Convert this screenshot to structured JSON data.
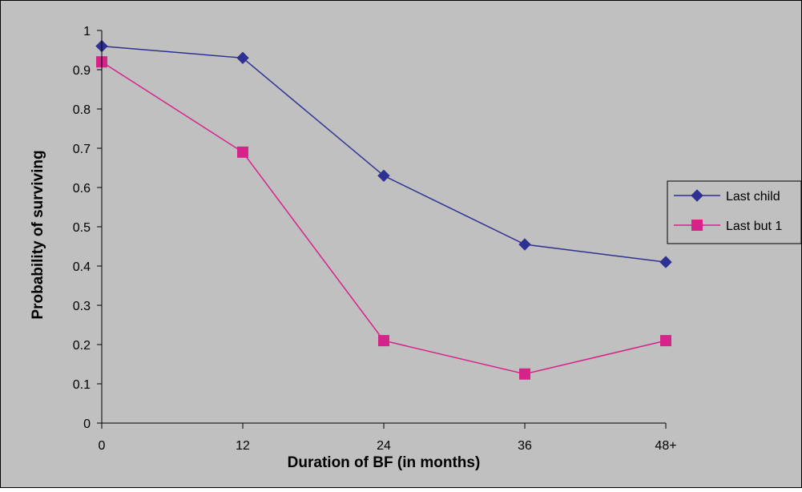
{
  "chart_data": {
    "type": "line",
    "title": "",
    "xlabel": "Duration of BF (in months)",
    "ylabel": "Probability of surviving",
    "categories": [
      "0",
      "12",
      "24",
      "36",
      "48+"
    ],
    "ylim": [
      0,
      1
    ],
    "yticks": [
      "0",
      "0.1",
      "0.2",
      "0.3",
      "0.4",
      "0.5",
      "0.6",
      "0.7",
      "0.8",
      "0.9",
      "1"
    ],
    "grid": false,
    "legend_position": "right",
    "plot_background": "#c0c0c0",
    "series": [
      {
        "name": "Last child",
        "values": [
          0.96,
          0.93,
          0.63,
          0.455,
          0.41
        ],
        "color": "#2e3192",
        "marker": "diamond"
      },
      {
        "name": "Last but 1",
        "values": [
          0.92,
          0.69,
          0.21,
          0.125,
          0.21
        ],
        "color": "#d6238a",
        "marker": "square"
      }
    ]
  }
}
